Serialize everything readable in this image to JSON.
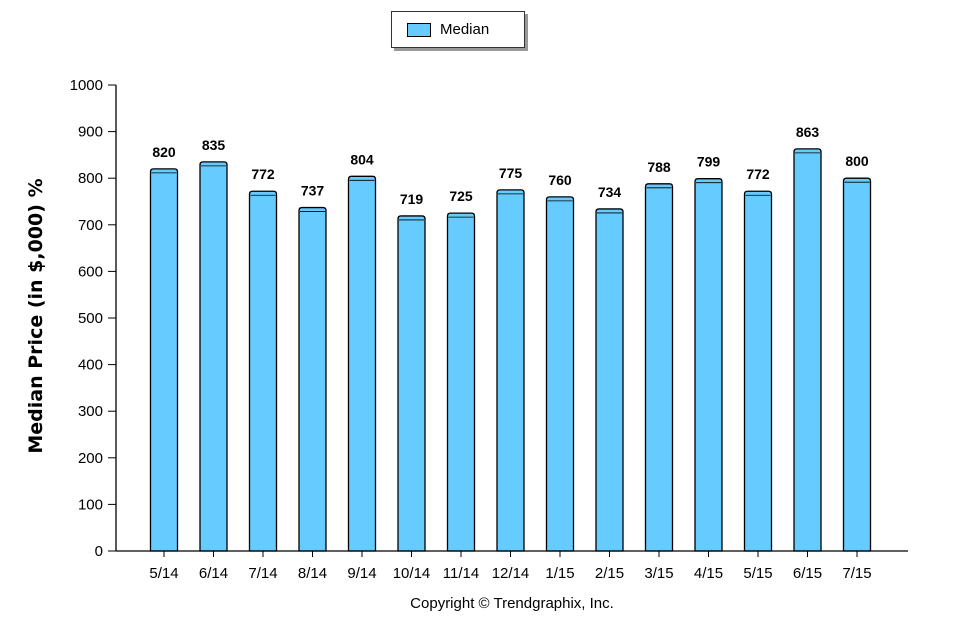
{
  "colors": {
    "bar": "#66ccff",
    "bar_stroke": "#000000",
    "axis": "#000000"
  },
  "legend": {
    "label": "Median"
  },
  "copyright": "Copyright © Trendgraphix, Inc.",
  "chart_data": {
    "type": "bar",
    "title": "",
    "xlabel": "",
    "ylabel": "Median Price (in $,000) %",
    "ylim": [
      0,
      1000
    ],
    "yticks": [
      0,
      100,
      200,
      300,
      400,
      500,
      600,
      700,
      800,
      900,
      1000
    ],
    "grid": false,
    "legend_position": "top",
    "categories": [
      "5/14",
      "6/14",
      "7/14",
      "8/14",
      "9/14",
      "10/14",
      "11/14",
      "12/14",
      "1/15",
      "2/15",
      "3/15",
      "4/15",
      "5/15",
      "6/15",
      "7/15"
    ],
    "series": [
      {
        "name": "Median",
        "values": [
          820,
          835,
          772,
          737,
          804,
          719,
          725,
          775,
          760,
          734,
          788,
          799,
          772,
          863,
          800
        ]
      }
    ]
  }
}
